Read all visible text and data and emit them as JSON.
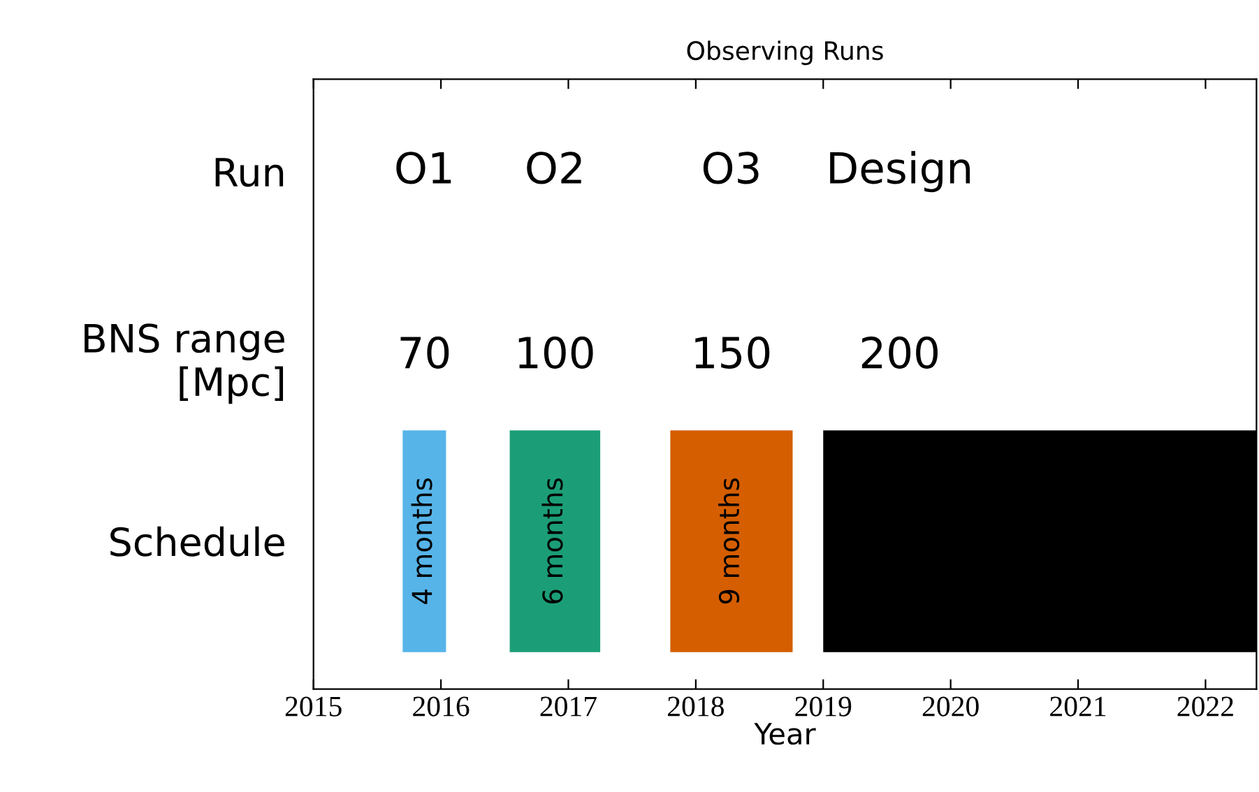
{
  "chart_data": {
    "type": "bar",
    "orientation": "horizontal",
    "title": "Observing Runs",
    "xlabel": "Year",
    "categories": [
      "Run",
      "BNS range\n[Mpc]",
      "Schedule"
    ],
    "series": [
      {
        "color": "#56b4e9",
        "base": [
          null,
          null,
          2015.7
        ],
        "values": [
          null,
          null,
          0.34
        ]
      },
      {
        "color": "#1b9e77",
        "base": [
          null,
          null,
          2016.54
        ],
        "values": [
          null,
          null,
          0.71
        ]
      },
      {
        "color": "#d55e00",
        "base": [
          null,
          null,
          2017.8
        ],
        "values": [
          null,
          null,
          0.96
        ]
      },
      {
        "color": "#000000",
        "base": [
          null,
          null,
          2019.0
        ],
        "values": [
          null,
          null,
          3.4
        ]
      }
    ],
    "xlim": [
      2015,
      2022.4
    ],
    "xticks": [
      2015,
      2016,
      2017,
      2018,
      2019,
      2020,
      2021,
      2022
    ],
    "tick_labels": "x",
    "grid": false,
    "annotations": [
      "O1",
      "O2",
      "O3",
      "Design",
      "70",
      "100",
      "150",
      "200",
      "4 months",
      "6 months",
      "9 months"
    ]
  }
}
